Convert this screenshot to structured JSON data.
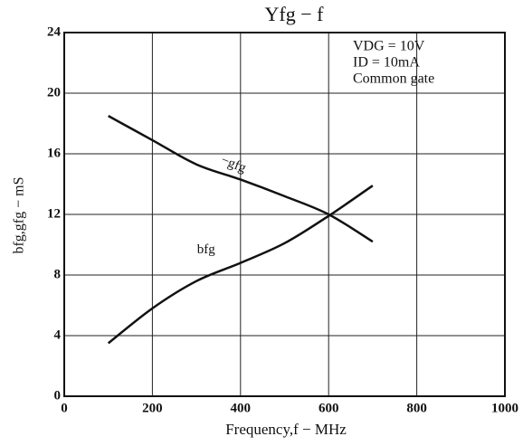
{
  "chart_data": {
    "type": "line",
    "title": "Yfg − f",
    "x_label": "Frequency,f − MHz",
    "y_label": "bfg,gfg − mS",
    "annotations": [
      "VDG = 10V",
      "ID = 10mA",
      "Common gate"
    ],
    "x": [
      100,
      200,
      300,
      400,
      500,
      600,
      700
    ],
    "series": [
      {
        "name": "−gfg",
        "color": "#111111",
        "values": [
          18.5,
          16.9,
          15.3,
          14.3,
          13.2,
          12.0,
          10.2
        ]
      },
      {
        "name": "bfg",
        "color": "#111111",
        "values": [
          3.5,
          5.8,
          7.6,
          8.8,
          10.1,
          11.9,
          13.9
        ]
      }
    ],
    "xlim": [
      0,
      1000
    ],
    "xticks": [
      0,
      200,
      400,
      600,
      800,
      1000
    ],
    "ylim": [
      0,
      24
    ],
    "yticks": [
      0,
      4,
      8,
      12,
      16,
      20,
      24
    ],
    "grid": true
  }
}
